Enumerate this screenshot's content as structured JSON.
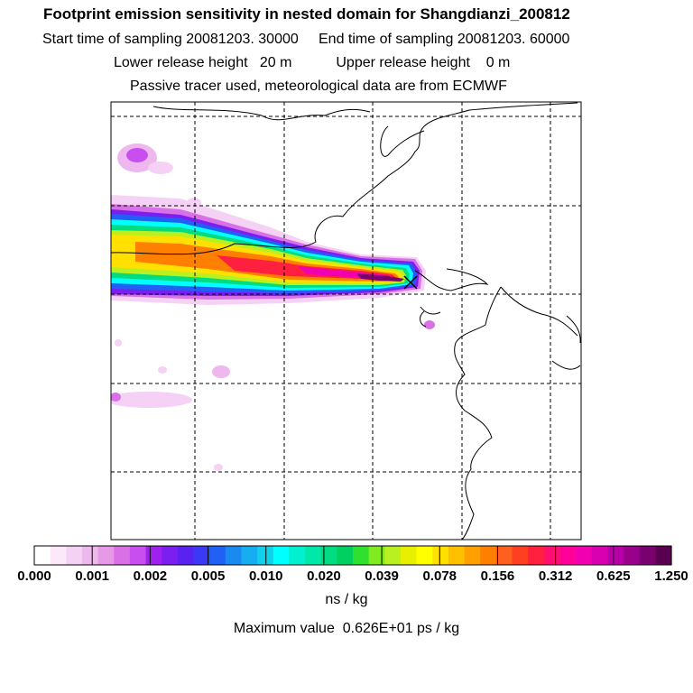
{
  "header": {
    "title": "Footprint emission sensitivity in nested domain for Shangdianzi_200812",
    "start_label": "Start time of sampling",
    "start_value": "20081203. 30000",
    "end_label": "End time of sampling",
    "end_value": "20081203. 60000",
    "lower_label": "Lower release height",
    "lower_value": "20 m",
    "upper_label": "Upper release height",
    "upper_value": "0 m",
    "note": "Passive tracer used, meteorological data are from ECMWF"
  },
  "colorbar": {
    "tick_labels": [
      "0.000",
      "0.001",
      "0.002",
      "0.005",
      "0.010",
      "0.020",
      "0.039",
      "0.078",
      "0.156",
      "0.312",
      "0.625",
      "1.250"
    ],
    "units": "ns / kg",
    "colors": [
      "#ffffff",
      "#fbe9fb",
      "#f5d2f5",
      "#eeb8ee",
      "#e69ae6",
      "#da70e6",
      "#c84ef0",
      "#a020f0",
      "#7a1ff0",
      "#5a22f0",
      "#3a3af5",
      "#2060f5",
      "#1a8af0",
      "#16aef0",
      "#10d0ec",
      "#00ffff",
      "#00f0d0",
      "#00e8a8",
      "#00dc80",
      "#00d060",
      "#30e030",
      "#80ec20",
      "#b8f020",
      "#e8f000",
      "#ffff00",
      "#ffe000",
      "#ffc000",
      "#ffa000",
      "#ff8000",
      "#ff6020",
      "#ff4020",
      "#ff2040",
      "#ff1070",
      "#ff0098",
      "#f000b0",
      "#d800b0",
      "#b800a8",
      "#98008c",
      "#7a0070",
      "#5a0050"
    ]
  },
  "footer": {
    "max_label": "Maximum value",
    "max_value": "0.626E+01 ps / kg"
  },
  "map": {
    "receptor": "Shangdianzi"
  }
}
